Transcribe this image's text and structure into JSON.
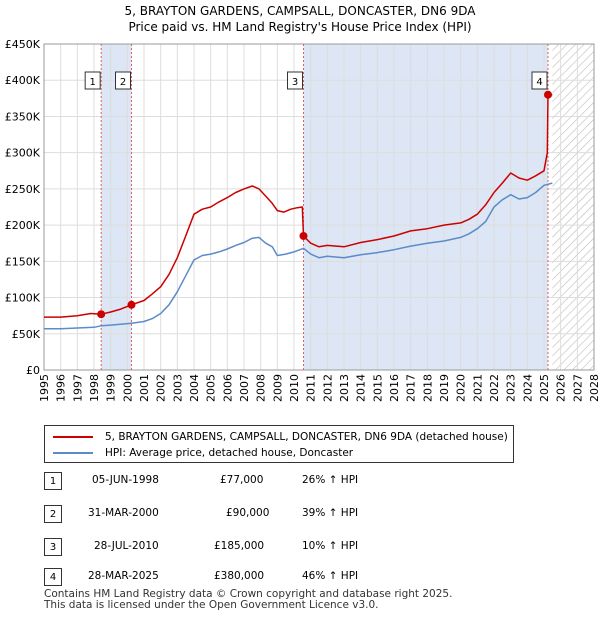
{
  "chart_data": {
    "type": "line",
    "title": "5, BRAYTON GARDENS, CAMPSALL, DONCASTER, DN6 9DA",
    "subtitle": "Price paid vs. HM Land Registry's House Price Index (HPI)",
    "xlim": [
      1995,
      2028
    ],
    "ylim": [
      0,
      450000
    ],
    "x_ticks": [
      1995,
      1996,
      1997,
      1998,
      1999,
      2000,
      2001,
      2002,
      2003,
      2004,
      2005,
      2006,
      2007,
      2008,
      2009,
      2010,
      2011,
      2012,
      2013,
      2014,
      2015,
      2016,
      2017,
      2018,
      2019,
      2020,
      2021,
      2022,
      2023,
      2024,
      2025,
      2026,
      2027,
      2028
    ],
    "y_ticks": [
      0,
      50000,
      100000,
      150000,
      200000,
      250000,
      300000,
      350000,
      400000,
      450000
    ],
    "y_tick_labels": [
      "£0",
      "£50K",
      "£100K",
      "£150K",
      "£200K",
      "£250K",
      "£300K",
      "£350K",
      "£400K",
      "£450K"
    ],
    "colors": {
      "property": "#cc0000",
      "hpi": "#5b8bc9",
      "shade": "#dde6f5",
      "grid": "#dddddd",
      "vline": "#e06060"
    },
    "hatch_from": 2025.5,
    "shaded_periods": [
      [
        1998.43,
        2000.25
      ],
      [
        2010.57,
        2025.24
      ]
    ],
    "series": [
      {
        "name": "5, BRAYTON GARDENS, CAMPSALL, DONCASTER, DN6 9DA (detached house)",
        "x": [
          1995.0,
          1996.0,
          1997.0,
          1997.8,
          1998.43,
          1999.0,
          1999.6,
          2000.25,
          2001.0,
          2001.5,
          2002.0,
          2002.5,
          2003.0,
          2003.5,
          2004.0,
          2004.5,
          2005.0,
          2005.5,
          2006.0,
          2006.5,
          2007.0,
          2007.5,
          2007.9,
          2008.3,
          2008.7,
          2009.0,
          2009.4,
          2009.8,
          2010.2,
          2010.5,
          2010.57,
          2011.0,
          2011.5,
          2012.0,
          2013.0,
          2014.0,
          2015.0,
          2016.0,
          2017.0,
          2018.0,
          2019.0,
          2020.0,
          2020.5,
          2021.0,
          2021.5,
          2022.0,
          2022.5,
          2023.0,
          2023.5,
          2024.0,
          2024.5,
          2025.0,
          2025.2,
          2025.24,
          2025.5
        ],
        "values": [
          73000,
          73000,
          75000,
          78000,
          77000,
          80000,
          84000,
          90000,
          96000,
          105000,
          115000,
          132000,
          155000,
          185000,
          215000,
          222000,
          225000,
          232000,
          238000,
          245000,
          250000,
          254000,
          250000,
          240000,
          230000,
          220000,
          218000,
          222000,
          224000,
          225000,
          185000,
          175000,
          170000,
          172000,
          170000,
          176000,
          180000,
          185000,
          192000,
          195000,
          200000,
          203000,
          208000,
          215000,
          228000,
          245000,
          258000,
          272000,
          265000,
          262000,
          268000,
          275000,
          300000,
          380000,
          380000
        ]
      },
      {
        "name": "HPI: Average price, detached house, Doncaster",
        "x": [
          1995.0,
          1996.0,
          1997.0,
          1998.0,
          1998.43,
          1999.0,
          2000.0,
          2000.25,
          2001.0,
          2001.5,
          2002.0,
          2002.5,
          2003.0,
          2003.5,
          2004.0,
          2004.5,
          2005.0,
          2005.5,
          2006.0,
          2006.5,
          2007.0,
          2007.5,
          2007.9,
          2008.3,
          2008.7,
          2009.0,
          2009.5,
          2010.0,
          2010.57,
          2011.0,
          2011.5,
          2012.0,
          2013.0,
          2014.0,
          2015.0,
          2016.0,
          2017.0,
          2018.0,
          2019.0,
          2020.0,
          2020.5,
          2021.0,
          2021.5,
          2022.0,
          2022.5,
          2023.0,
          2023.5,
          2024.0,
          2024.5,
          2025.0,
          2025.5
        ],
        "values": [
          57000,
          57000,
          58000,
          59000,
          61000,
          62000,
          64000,
          64500,
          67000,
          71000,
          78000,
          90000,
          108000,
          130000,
          152000,
          158000,
          160000,
          163000,
          167000,
          172000,
          176000,
          182000,
          183000,
          175000,
          170000,
          158000,
          160000,
          163000,
          168000,
          160000,
          155000,
          157000,
          155000,
          159000,
          162000,
          166000,
          171000,
          175000,
          178000,
          183000,
          188000,
          195000,
          205000,
          225000,
          235000,
          242000,
          236000,
          238000,
          245000,
          255000,
          258000
        ]
      }
    ],
    "sales_markers": [
      {
        "label": "1",
        "x": 1998.43,
        "value": 77000
      },
      {
        "label": "2",
        "x": 2000.25,
        "value": 90000
      },
      {
        "label": "3",
        "x": 2010.57,
        "value": 185000
      },
      {
        "label": "4",
        "x": 2025.24,
        "value": 380000
      }
    ]
  },
  "legend": {
    "property_label": "5, BRAYTON GARDENS, CAMPSALL, DONCASTER, DN6 9DA (detached house)",
    "hpi_label": "HPI: Average price, detached house, Doncaster"
  },
  "sales": [
    {
      "num": "1",
      "date": "05-JUN-1998",
      "price": "£77,000",
      "change": "26% ↑ HPI"
    },
    {
      "num": "2",
      "date": "31-MAR-2000",
      "price": "£90,000",
      "change": "39% ↑ HPI"
    },
    {
      "num": "3",
      "date": "28-JUL-2010",
      "price": "£185,000",
      "change": "10% ↑ HPI"
    },
    {
      "num": "4",
      "date": "28-MAR-2025",
      "price": "£380,000",
      "change": "46% ↑ HPI"
    }
  ],
  "footer": {
    "line1": "Contains HM Land Registry data © Crown copyright and database right 2025.",
    "line2": "This data is licensed under the Open Government Licence v3.0."
  }
}
